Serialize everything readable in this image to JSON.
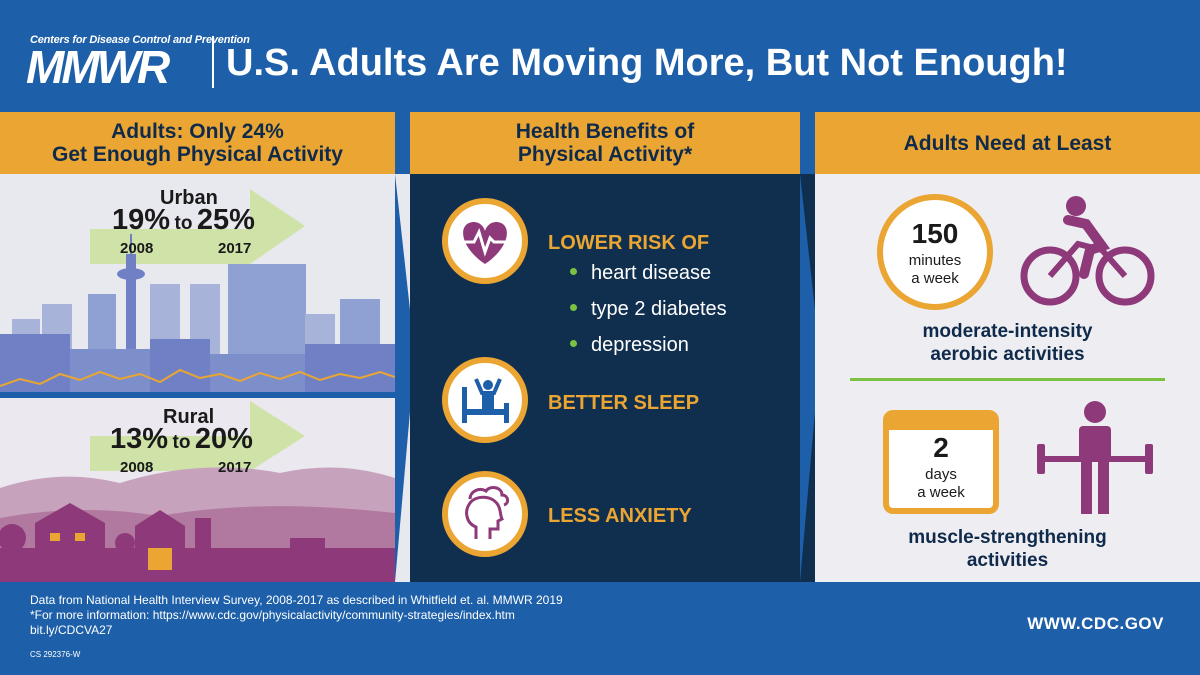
{
  "header": {
    "logo_small": "Centers for Disease Control and Prevention",
    "logo_big": "MMWR",
    "title": "U.S. Adults Are Moving More, But Not Enough!"
  },
  "col1": {
    "head_line1": "Adults: Only 24%",
    "head_line2": "Get Enough Physical Activity",
    "urban": {
      "label": "Urban",
      "from": "19%",
      "to_word": "to",
      "to": "25%",
      "year_from": "2008",
      "year_to": "2017"
    },
    "rural": {
      "label": "Rural",
      "from": "13%",
      "to_word": "to",
      "to": "20%",
      "year_from": "2008",
      "year_to": "2017"
    }
  },
  "col2": {
    "head_line1": "Health Benefits of",
    "head_line2": "Physical Activity*",
    "lower_risk": "LOWER RISK OF",
    "bullets": [
      "heart disease",
      "type 2 diabetes",
      "depression"
    ],
    "better_sleep": "BETTER SLEEP",
    "less_anxiety": "LESS ANXIETY",
    "icons": [
      "heart-icon",
      "sleep-icon",
      "head-icon"
    ]
  },
  "col3": {
    "head": "Adults Need at Least",
    "aerobic": {
      "number": "150",
      "unit1": "minutes",
      "unit2": "a week",
      "desc1": "moderate-intensity",
      "desc2": "aerobic activities"
    },
    "strength": {
      "number": "2",
      "unit1": "days",
      "unit2": "a week",
      "desc1": "muscle-strengthening",
      "desc2": "activities"
    }
  },
  "footer": {
    "line1": "Data from National Health Interview Survey, 2008-2017 as described in Whitfield et. al. MMWR 2019",
    "line2": "*For more information: https://www.cdc.gov/physicalactivity/community-strategies/index.htm",
    "line3": "bit.ly/CDCVA27",
    "code": "CS 292376-W",
    "site": "WWW.CDC.GOV"
  },
  "colors": {
    "blue": "#1d5fa8",
    "gold": "#eaa532",
    "navy": "#102f4e",
    "purple": "#8e3a7a",
    "green": "#7cc242"
  }
}
